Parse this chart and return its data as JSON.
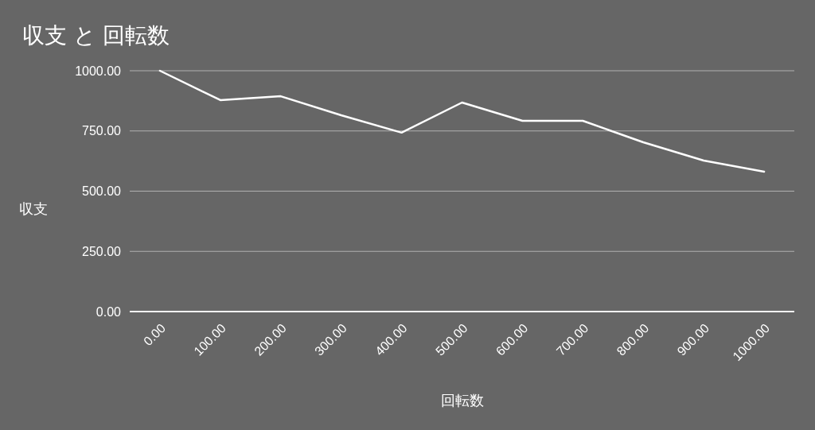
{
  "chart_data": {
    "type": "line",
    "title": "収支 と 回転数",
    "xlabel": "回転数",
    "ylabel": "収支",
    "categories": [
      "0.00",
      "100.00",
      "200.00",
      "300.00",
      "400.00",
      "500.00",
      "600.00",
      "700.00",
      "800.00",
      "900.00",
      "1000.00"
    ],
    "series": [
      {
        "color": "#ffffff",
        "values": [
          1000,
          878,
          894,
          815,
          743,
          868,
          792,
          792,
          703,
          627,
          581
        ]
      }
    ],
    "ylim": [
      0,
      1000
    ],
    "yticks": [
      {
        "value": 0,
        "label": "0.00"
      },
      {
        "value": 250,
        "label": "250.00"
      },
      {
        "value": 500,
        "label": "500.00"
      },
      {
        "value": 750,
        "label": "750.00"
      },
      {
        "value": 1000,
        "label": "1000.00"
      }
    ],
    "grid": "y",
    "marker": "none",
    "line_style": "solid"
  }
}
